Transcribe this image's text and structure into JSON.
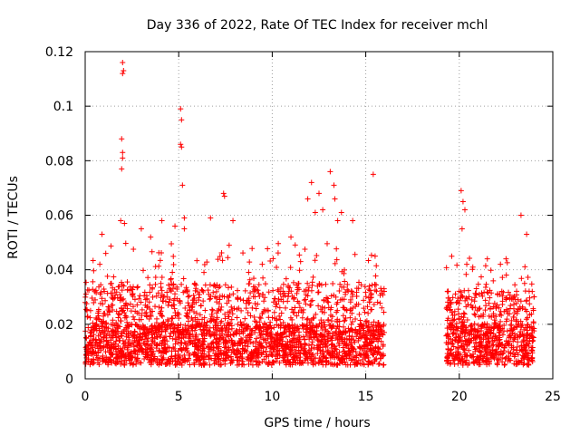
{
  "chart_data": {
    "type": "scatter",
    "title": "Day 336 of 2022, Rate Of TEC Index for receiver mchl",
    "xlabel": "GPS time / hours",
    "ylabel": "ROTI / TECUs",
    "xlim": [
      0,
      25
    ],
    "ylim": [
      0,
      0.12
    ],
    "xticks": [
      0,
      5,
      10,
      15,
      20,
      25
    ],
    "xtick_labels": [
      "0",
      "5",
      "10",
      "15",
      "20",
      "25"
    ],
    "yticks": [
      0,
      0.02,
      0.04,
      0.06,
      0.08,
      0.1,
      0.12
    ],
    "ytick_labels": [
      "0",
      "0.02",
      "0.04",
      "0.06",
      "0.08",
      "0.1",
      "0.12"
    ],
    "grid": true,
    "marker": "+",
    "color": "#ff0000",
    "series": [
      {
        "name": "ROTI",
        "segments": [
          {
            "x_range": [
              0.0,
              16.0
            ],
            "typical_range": [
              0.005,
              0.02
            ],
            "envelope_max": 0.05
          },
          {
            "x_range": [
              19.3,
              24.0
            ],
            "typical_range": [
              0.005,
              0.02
            ],
            "envelope_max": 0.045
          }
        ],
        "x": [
          0.0,
          0.1,
          0.9,
          1.1,
          1.4,
          1.9,
          1.95,
          2.0,
          2.0,
          1.95,
          2.0,
          2.05,
          2.0,
          2.1,
          3.0,
          3.5,
          4.1,
          4.8,
          5.1,
          5.15,
          5.1,
          5.15,
          5.2,
          5.3,
          5.3,
          6.7,
          7.4,
          7.45,
          7.9,
          9.5,
          11.0,
          11.9,
          12.1,
          12.3,
          12.5,
          12.7,
          13.1,
          13.3,
          13.35,
          13.5,
          13.7,
          14.3,
          15.4,
          15.5,
          20.1,
          20.2,
          20.3,
          20.15,
          20.4,
          21.5,
          22.2,
          22.5,
          23.3,
          23.6
        ],
        "y": [
          0.028,
          0.025,
          0.053,
          0.046,
          0.035,
          0.058,
          0.088,
          0.083,
          0.081,
          0.077,
          0.112,
          0.113,
          0.116,
          0.057,
          0.055,
          0.052,
          0.058,
          0.056,
          0.099,
          0.095,
          0.086,
          0.085,
          0.071,
          0.059,
          0.055,
          0.059,
          0.068,
          0.067,
          0.058,
          0.037,
          0.052,
          0.066,
          0.072,
          0.061,
          0.068,
          0.062,
          0.076,
          0.071,
          0.066,
          0.058,
          0.061,
          0.058,
          0.075,
          0.045,
          0.069,
          0.065,
          0.062,
          0.055,
          0.042,
          0.044,
          0.042,
          0.044,
          0.06,
          0.053
        ]
      }
    ]
  }
}
